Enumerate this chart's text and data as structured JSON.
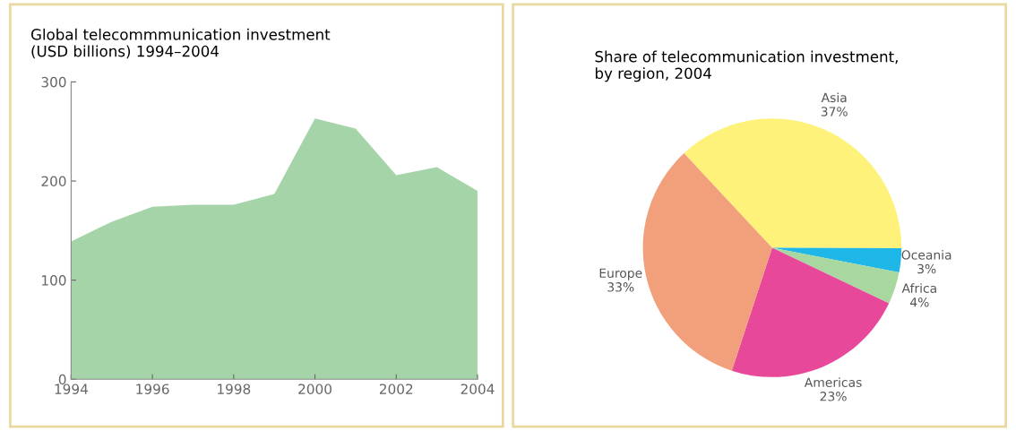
{
  "chart_data": [
    {
      "type": "area",
      "title": "Global telecommmunication investment\n(USD billions) 1994–2004",
      "x": [
        1994,
        1995,
        1996,
        1997,
        1998,
        1999,
        2000,
        2001,
        2002,
        2003,
        2004
      ],
      "values": [
        139,
        159,
        174,
        176,
        176,
        187,
        263,
        253,
        206,
        214,
        190
      ],
      "color": "#a5d4a8",
      "xlim": [
        1994,
        2004
      ],
      "xticks": [
        1994,
        1996,
        1998,
        2000,
        2002,
        2004
      ],
      "ylim": [
        0,
        300
      ],
      "yticks": [
        0,
        100,
        200,
        300
      ],
      "grid": false
    },
    {
      "type": "pie",
      "title": "Share of telecommunication investment,\nby region, 2004",
      "categories": [
        "Asia",
        "Oceania",
        "Africa",
        "Americas",
        "Europe"
      ],
      "values": [
        37,
        3,
        4,
        23,
        33
      ],
      "value_labels": [
        "37%",
        "3%",
        "4%",
        "23%",
        "33%"
      ],
      "colors": [
        "#fff27a",
        "#1fb6e8",
        "#a8d8a0",
        "#e8489a",
        "#f2a07c"
      ]
    }
  ]
}
